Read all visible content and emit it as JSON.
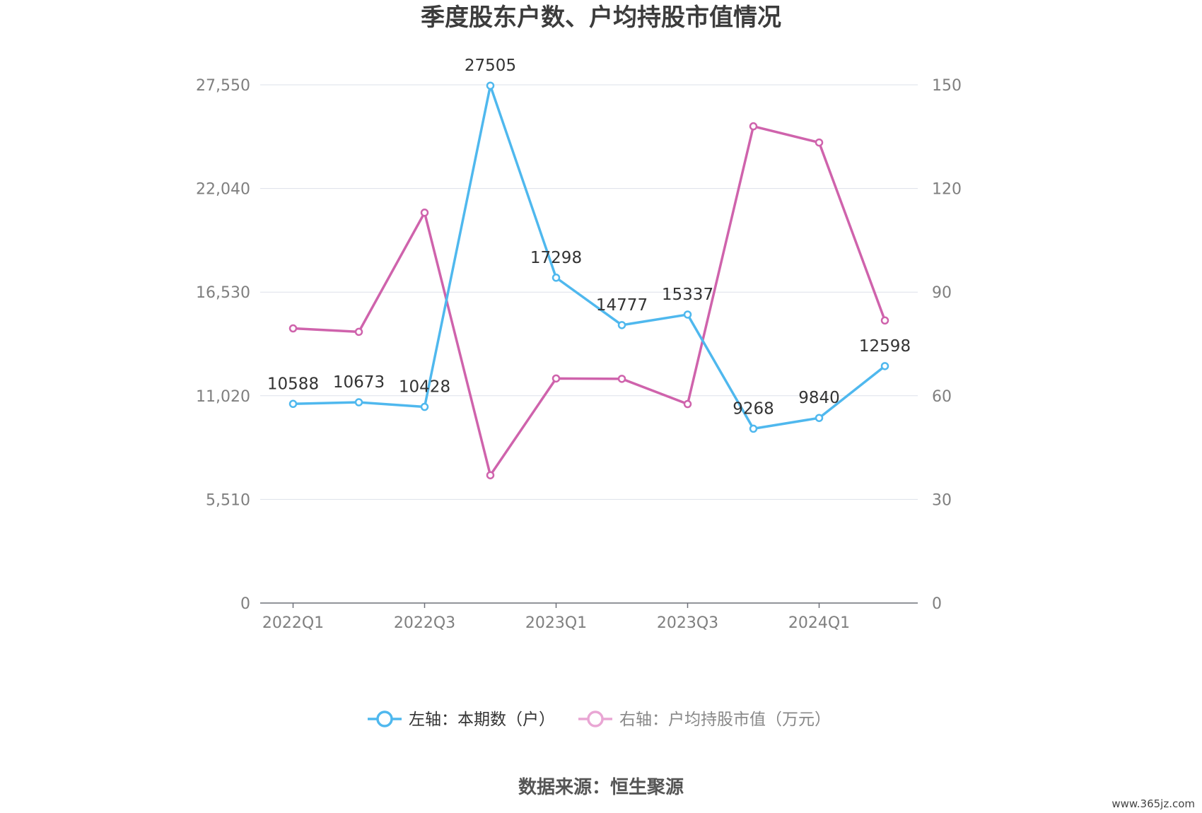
{
  "title": "季度股东户数、户均持股市值情况",
  "source": "数据来源：恒生聚源",
  "watermark": "www.365jz.com",
  "chart_data": {
    "type": "line",
    "categories": [
      "2022Q1",
      "2022Q2",
      "2022Q3",
      "2022Q4",
      "2023Q1",
      "2023Q2",
      "2023Q3",
      "2023Q4",
      "2024Q1",
      "2024Q2"
    ],
    "x_tick_labels": [
      "2022Q1",
      "2022Q3",
      "2023Q1",
      "2023Q3",
      "2024Q1"
    ],
    "left_axis": {
      "ticks": [
        "0",
        "5,510",
        "11,020",
        "16,530",
        "22,040",
        "27,550"
      ],
      "ylim": [
        0,
        27550
      ]
    },
    "right_axis": {
      "ticks": [
        "0",
        "30",
        "60",
        "90",
        "120",
        "150"
      ],
      "ylim": [
        0,
        150
      ]
    },
    "grid": true,
    "legend_position": "bottom",
    "series": [
      {
        "name": "左轴：本期数（户）",
        "axis": "left",
        "color": "#4fb8ee",
        "values": [
          10588,
          10673,
          10428,
          27505,
          17298,
          14777,
          15337,
          9268,
          9840,
          12598
        ],
        "show_labels": true
      },
      {
        "name": "右轴：户均持股市值（万元）",
        "axis": "right",
        "color": "#cf63ac",
        "values": [
          79.5,
          78.5,
          113,
          37,
          65,
          64.9,
          57.6,
          138,
          133.3,
          81.8
        ],
        "show_labels": false
      }
    ]
  }
}
